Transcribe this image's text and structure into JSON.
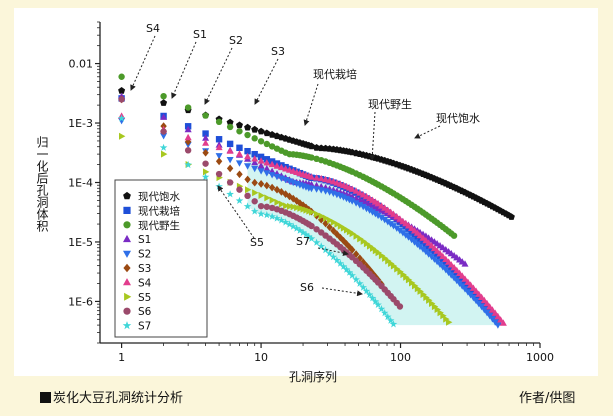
{
  "caption": {
    "title": "炭化大豆孔洞统计分析",
    "credit": "作者/供图"
  },
  "chart_data": {
    "type": "scatter",
    "x_scale": "log",
    "y_scale": "log",
    "xlim": [
      0.7,
      1000
    ],
    "ylim": [
      2e-07,
      0.05
    ],
    "xlabel": "孔洞序列",
    "ylabel": "归一化后孔洞体积",
    "x_ticks": [
      "1",
      "10",
      "100",
      "1000"
    ],
    "y_ticks": [
      "0.01",
      "1E-3",
      "1E-4",
      "1E-5",
      "1E-6"
    ],
    "legend_position": "lower-left",
    "series": [
      {
        "name": "现代饱水",
        "color": "#111111",
        "marker": "pentagon",
        "n": 650,
        "y_first": 0.0035,
        "y_mid": 0.00038,
        "y_last": 2.5e-05
      },
      {
        "name": "现代栽培",
        "color": "#1f4fd8",
        "marker": "square",
        "n": 520,
        "y_first": 0.0026,
        "y_mid": 0.00012,
        "y_last": 4e-07
      },
      {
        "name": "现代野生",
        "color": "#4c9a2a",
        "marker": "circle",
        "n": 250,
        "y_first": 0.006,
        "y_mid": 0.0003,
        "y_last": 1.2e-05
      },
      {
        "name": "S1",
        "color": "#7a2bc4",
        "marker": "triangle-up",
        "n": 300,
        "y_first": 0.0028,
        "y_mid": 0.0001,
        "y_last": 4e-06
      },
      {
        "name": "S2",
        "color": "#2f6fe8",
        "marker": "triangle-down",
        "n": 500,
        "y_first": 0.0011,
        "y_mid": 8e-05,
        "y_last": 4e-07
      },
      {
        "name": "S3",
        "color": "#9b4a12",
        "marker": "diamond",
        "n": 75,
        "y_first": 0.0025,
        "y_mid": 0.0001,
        "y_last": 1.8e-06
      },
      {
        "name": "S4",
        "color": "#e23d8d",
        "marker": "triangle-up",
        "n": 560,
        "y_first": 0.0013,
        "y_mid": 0.00012,
        "y_last": 4e-07
      },
      {
        "name": "S5",
        "color": "#a8c820",
        "marker": "triangle-right",
        "n": 230,
        "y_first": 0.0006,
        "y_mid": 4e-05,
        "y_last": 4e-07
      },
      {
        "name": "S6",
        "color": "#9b4a6b",
        "marker": "circle",
        "n": 100,
        "y_first": 0.0025,
        "y_mid": 4e-05,
        "y_last": 8e-07
      },
      {
        "name": "S7",
        "color": "#3fd6d8",
        "marker": "star",
        "n": 90,
        "y_first": 0.0012,
        "y_mid": 3e-05,
        "y_last": 4e-07
      }
    ],
    "annotations": [
      {
        "text": "S4"
      },
      {
        "text": "S1"
      },
      {
        "text": "S2"
      },
      {
        "text": "S3"
      },
      {
        "text": "现代栽培"
      },
      {
        "text": "现代野生"
      },
      {
        "text": "现代饱水"
      },
      {
        "text": "S5"
      },
      {
        "text": "S7"
      },
      {
        "text": "S6"
      }
    ]
  }
}
